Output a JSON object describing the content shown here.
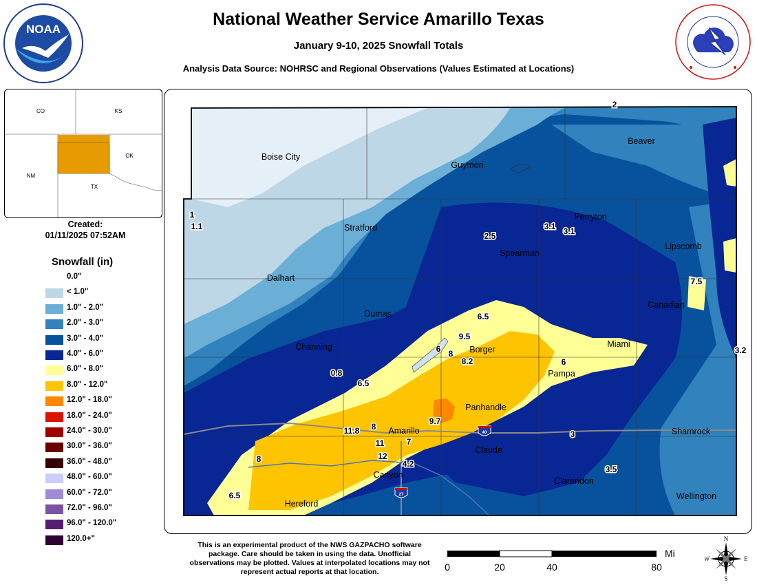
{
  "header": {
    "title": "National Weather Service Amarillo Texas",
    "subtitle": "January 9-10, 2025 Snowfall Totals",
    "source": "Analysis Data Source: NOHRSC and Regional Observations (Values Estimated at Locations)"
  },
  "logos": {
    "noaa": {
      "label": "NOAA",
      "ring_text": "NATIONAL OCEANIC AND ATMOSPHERIC ADMINISTRATION · U.S. DEPARTMENT OF COMMERCE"
    },
    "nws": {
      "ring_text": "NATIONAL WEATHER SERVICE"
    }
  },
  "inset": {
    "states": [
      "CO",
      "KS",
      "NM",
      "OK",
      "TX"
    ]
  },
  "created": {
    "label": "Created:",
    "timestamp": "01/11/2025 07:52AM"
  },
  "legend": {
    "title": "Snowfall (in)",
    "items": [
      {
        "label": "0.0\"",
        "color": "#ffffff"
      },
      {
        "label": "< 1.0\"",
        "color": "#bdd7e7"
      },
      {
        "label": "1.0\" - 2.0\"",
        "color": "#6baed6"
      },
      {
        "label": "2.0\" - 3.0\"",
        "color": "#3182bd"
      },
      {
        "label": "3.0\" - 4.0\"",
        "color": "#08519c"
      },
      {
        "label": "4.0\" - 6.0\"",
        "color": "#082694"
      },
      {
        "label": "6.0\" - 8.0\"",
        "color": "#ffff96"
      },
      {
        "label": "8.0\" - 12.0\"",
        "color": "#ffc400"
      },
      {
        "label": "12.0\" - 18.0\"",
        "color": "#ff8700"
      },
      {
        "label": "18.0\" - 24.0\"",
        "color": "#db1400"
      },
      {
        "label": "24.0\" - 30.0\"",
        "color": "#9e0000"
      },
      {
        "label": "30.0\" - 36.0\"",
        "color": "#690000"
      },
      {
        "label": "36.0\" - 48.0\"",
        "color": "#360000"
      },
      {
        "label": "48.0\" - 60.0\"",
        "color": "#ccccff"
      },
      {
        "label": "60.0\" - 72.0\"",
        "color": "#9f8cd8"
      },
      {
        "label": "72.0\" - 96.0\"",
        "color": "#7c52a5"
      },
      {
        "label": "96.0\" - 120.0\"",
        "color": "#561c72"
      },
      {
        "label": "120.0+\"",
        "color": "#2e0033"
      }
    ]
  },
  "cities": [
    "Boise City",
    "Guymon",
    "Beaver",
    "Perryton",
    "Stratford",
    "Spearman",
    "Lipscomb",
    "Dalhart",
    "Canadian",
    "Dumas",
    "Borger",
    "Miami",
    "Channing",
    "Pampa",
    "Panhandle",
    "Amarillo",
    "Shamrock",
    "Claude",
    "Canyon",
    "Clarendon",
    "Hereford",
    "Wellington"
  ],
  "highways": [
    "40",
    "27"
  ],
  "observations": [
    "2",
    "1",
    "1.1",
    "2.5",
    "3.1",
    "3.1",
    "7.5",
    "6.5",
    "9.5",
    "6",
    "8",
    "8.2",
    "6",
    "3.2",
    "0.8",
    "6.5",
    "9.7",
    "11.8",
    "8",
    "11",
    "7",
    "3",
    "12",
    "4.2",
    "8",
    "3.5",
    "6.5"
  ],
  "disclaimer": "This is an experimental product of the NWS GAZPACHO software package. Care should be taken in using the data. Unofficial observations may be plotted. Values at interpolated locations may not represent actual reports at that location.",
  "scale": {
    "unit": "Miles",
    "ticks": [
      "0",
      "20",
      "40",
      "80"
    ]
  },
  "compass": {
    "n": "N",
    "s": "S",
    "e": "E",
    "w": "W"
  }
}
